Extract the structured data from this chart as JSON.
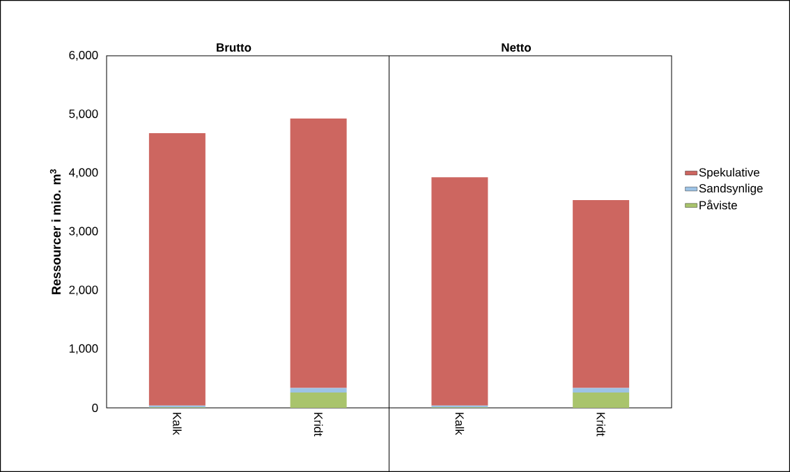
{
  "chart_data": {
    "type": "bar",
    "stacked": true,
    "ylabel": "Ressourcer i mio. m$^{3}$",
    "categories": [
      "Kalk",
      "Kridt",
      "Kalk",
      "Kridt"
    ],
    "series": [
      {
        "name": "Påviste",
        "color": "#a9c46c",
        "values": [
          10,
          260,
          10,
          260
        ]
      },
      {
        "name": "Sandsynlige",
        "color": "#9dc3e6",
        "values": [
          30,
          80,
          30,
          80
        ]
      },
      {
        "name": "Spekulative",
        "color": "#cd6660",
        "values": [
          4640,
          4590,
          3890,
          3200
        ]
      }
    ],
    "ylim": [
      0,
      6000
    ],
    "yticks": [
      {
        "value": 0,
        "label": "0"
      },
      {
        "value": 1000,
        "label": "1,000"
      },
      {
        "value": 2000,
        "label": "2,000"
      },
      {
        "value": 3000,
        "label": "3,000"
      },
      {
        "value": 4000,
        "label": "4,000"
      },
      {
        "value": 5000,
        "label": "5,000"
      },
      {
        "value": 6000,
        "label": "6,000"
      }
    ],
    "annotations": [
      "Brutto",
      "Netto"
    ],
    "legend": "right",
    "grid": false
  }
}
